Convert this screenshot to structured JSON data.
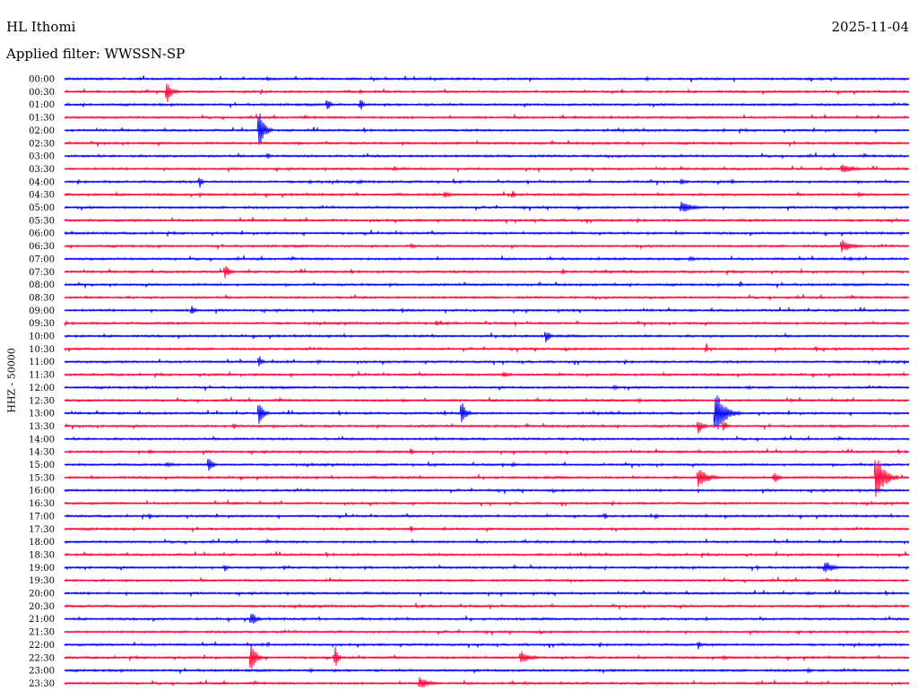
{
  "header": {
    "station": "HL Ithomi",
    "date": "2025-11-04",
    "filter": "Applied filter: WWSSN-SP"
  },
  "chart_data": {
    "type": "line",
    "title": "HL Ithomi",
    "subtitle": "Applied filter: WWSSN-SP",
    "ylabel": "HHZ - 50000",
    "colors": {
      "even": "#0000ff",
      "odd": "#ff0033"
    },
    "rows": [
      {
        "label": "00:00",
        "events": [
          [
            0.24,
            5,
            6
          ],
          [
            0.69,
            3,
            6
          ]
        ]
      },
      {
        "label": "00:30",
        "events": [
          [
            0.12,
            16,
            18
          ],
          [
            0.35,
            3,
            12
          ],
          [
            0.66,
            3,
            6
          ]
        ]
      },
      {
        "label": "01:00",
        "events": [
          [
            0.31,
            12,
            10
          ],
          [
            0.35,
            9,
            10
          ]
        ]
      },
      {
        "label": "01:30",
        "events": []
      },
      {
        "label": "02:00",
        "events": [
          [
            0.23,
            28,
            16
          ],
          [
            0.78,
            2,
            8
          ]
        ]
      },
      {
        "label": "02:30",
        "events": [
          [
            0.93,
            2,
            8
          ]
        ]
      },
      {
        "label": "03:00",
        "events": [
          [
            0.24,
            5,
            10
          ],
          [
            0.73,
            2,
            6
          ]
        ]
      },
      {
        "label": "03:30",
        "events": [
          [
            0.39,
            4,
            12
          ],
          [
            0.92,
            6,
            40
          ],
          [
            0.64,
            2,
            8
          ]
        ]
      },
      {
        "label": "04:00",
        "events": [
          [
            0.16,
            8,
            8
          ],
          [
            0.29,
            3,
            14
          ],
          [
            0.35,
            3,
            10
          ],
          [
            0.73,
            5,
            14
          ],
          [
            0.79,
            6,
            6
          ]
        ]
      },
      {
        "label": "04:30",
        "events": [
          [
            0.16,
            3,
            8
          ],
          [
            0.45,
            4,
            24
          ],
          [
            0.53,
            7,
            8
          ],
          [
            0.94,
            3,
            18
          ]
        ]
      },
      {
        "label": "05:00",
        "events": [
          [
            0.73,
            7,
            40
          ],
          [
            0.92,
            2,
            6
          ]
        ]
      },
      {
        "label": "05:30",
        "events": []
      },
      {
        "label": "06:00",
        "events": [
          [
            0.73,
            2,
            6
          ]
        ]
      },
      {
        "label": "06:30",
        "events": [
          [
            0.41,
            4,
            12
          ],
          [
            0.92,
            9,
            30
          ]
        ]
      },
      {
        "label": "07:00",
        "events": [
          [
            0.43,
            2,
            6
          ],
          [
            0.74,
            4,
            14
          ],
          [
            0.93,
            3,
            10
          ]
        ]
      },
      {
        "label": "07:30",
        "events": [
          [
            0.19,
            10,
            14
          ],
          [
            0.59,
            5,
            6
          ]
        ]
      },
      {
        "label": "08:00",
        "events": [
          [
            0.8,
            6,
            6
          ]
        ]
      },
      {
        "label": "08:30",
        "events": []
      },
      {
        "label": "09:00",
        "events": [
          [
            0.15,
            6,
            16
          ],
          [
            0.4,
            3,
            6
          ]
        ]
      },
      {
        "label": "09:30",
        "events": [
          [
            0.44,
            4,
            12
          ]
        ]
      },
      {
        "label": "10:00",
        "events": [
          [
            0.57,
            8,
            14
          ],
          [
            0.52,
            2,
            8
          ]
        ]
      },
      {
        "label": "10:30",
        "events": [
          [
            0.76,
            9,
            4
          ],
          [
            0.89,
            5,
            6
          ]
        ]
      },
      {
        "label": "11:00",
        "events": [
          [
            0.23,
            9,
            10
          ],
          [
            0.3,
            3,
            8
          ]
        ]
      },
      {
        "label": "11:30",
        "events": [
          [
            0.52,
            4,
            18
          ],
          [
            0.86,
            2,
            6
          ]
        ]
      },
      {
        "label": "12:00",
        "events": [
          [
            0.65,
            3,
            20
          ],
          [
            0.81,
            3,
            8
          ]
        ]
      },
      {
        "label": "12:30",
        "events": [
          [
            0.4,
            3,
            10
          ],
          [
            0.68,
            4,
            8
          ],
          [
            0.86,
            3,
            8
          ]
        ]
      },
      {
        "label": "13:00",
        "events": [
          [
            0.23,
            17,
            14
          ],
          [
            0.47,
            16,
            14
          ],
          [
            0.77,
            28,
            30
          ],
          [
            0.45,
            3,
            6
          ]
        ]
      },
      {
        "label": "13:30",
        "events": [
          [
            0.2,
            5,
            8
          ],
          [
            0.75,
            10,
            16
          ],
          [
            0.78,
            8,
            12
          ]
        ]
      },
      {
        "label": "14:00",
        "events": [
          [
            0.44,
            3,
            8
          ],
          [
            0.56,
            2,
            8
          ]
        ]
      },
      {
        "label": "14:30",
        "events": [
          [
            0.1,
            3,
            18
          ],
          [
            0.41,
            6,
            8
          ],
          [
            0.37,
            2,
            6
          ]
        ]
      },
      {
        "label": "15:00",
        "events": [
          [
            0.17,
            14,
            12
          ],
          [
            0.53,
            4,
            10
          ],
          [
            0.12,
            3,
            30
          ]
        ]
      },
      {
        "label": "15:30",
        "events": [
          [
            0.75,
            14,
            30
          ],
          [
            0.84,
            7,
            18
          ],
          [
            0.96,
            36,
            26
          ]
        ]
      },
      {
        "label": "16:00",
        "events": []
      },
      {
        "label": "16:30",
        "events": [
          [
            0.2,
            2,
            20
          ],
          [
            0.92,
            2,
            8
          ]
        ]
      },
      {
        "label": "17:00",
        "events": [
          [
            0.1,
            5,
            8
          ],
          [
            0.64,
            5,
            6
          ],
          [
            0.7,
            5,
            6
          ],
          [
            0.76,
            2,
            8
          ]
        ]
      },
      {
        "label": "17:30",
        "events": [
          [
            0.41,
            7,
            6
          ],
          [
            0.45,
            3,
            6
          ]
        ]
      },
      {
        "label": "18:00",
        "events": [
          [
            0.6,
            2,
            6
          ]
        ]
      },
      {
        "label": "18:30",
        "events": [
          [
            0.72,
            2,
            16
          ]
        ]
      },
      {
        "label": "19:00",
        "events": [
          [
            0.19,
            5,
            8
          ],
          [
            0.26,
            3,
            8
          ],
          [
            0.82,
            3,
            10
          ],
          [
            0.9,
            9,
            24
          ]
        ]
      },
      {
        "label": "19:30",
        "events": []
      },
      {
        "label": "20:00",
        "events": [
          [
            0.88,
            2,
            20
          ]
        ]
      },
      {
        "label": "20:30",
        "events": []
      },
      {
        "label": "21:00",
        "events": [
          [
            0.22,
            10,
            18
          ],
          [
            0.76,
            3,
            6
          ]
        ]
      },
      {
        "label": "21:30",
        "events": []
      },
      {
        "label": "22:00",
        "events": [
          [
            0.24,
            3,
            8
          ],
          [
            0.75,
            7,
            8
          ],
          [
            0.59,
            2,
            8
          ]
        ]
      },
      {
        "label": "22:30",
        "events": [
          [
            0.22,
            22,
            16
          ],
          [
            0.32,
            16,
            10
          ],
          [
            0.54,
            8,
            30
          ],
          [
            0.78,
            3,
            18
          ]
        ]
      },
      {
        "label": "23:00",
        "events": [
          [
            0.29,
            3,
            14
          ],
          [
            0.88,
            3,
            18
          ]
        ]
      },
      {
        "label": "23:30",
        "events": [
          [
            0.42,
            8,
            30
          ],
          [
            0.82,
            2,
            20
          ]
        ]
      }
    ]
  }
}
